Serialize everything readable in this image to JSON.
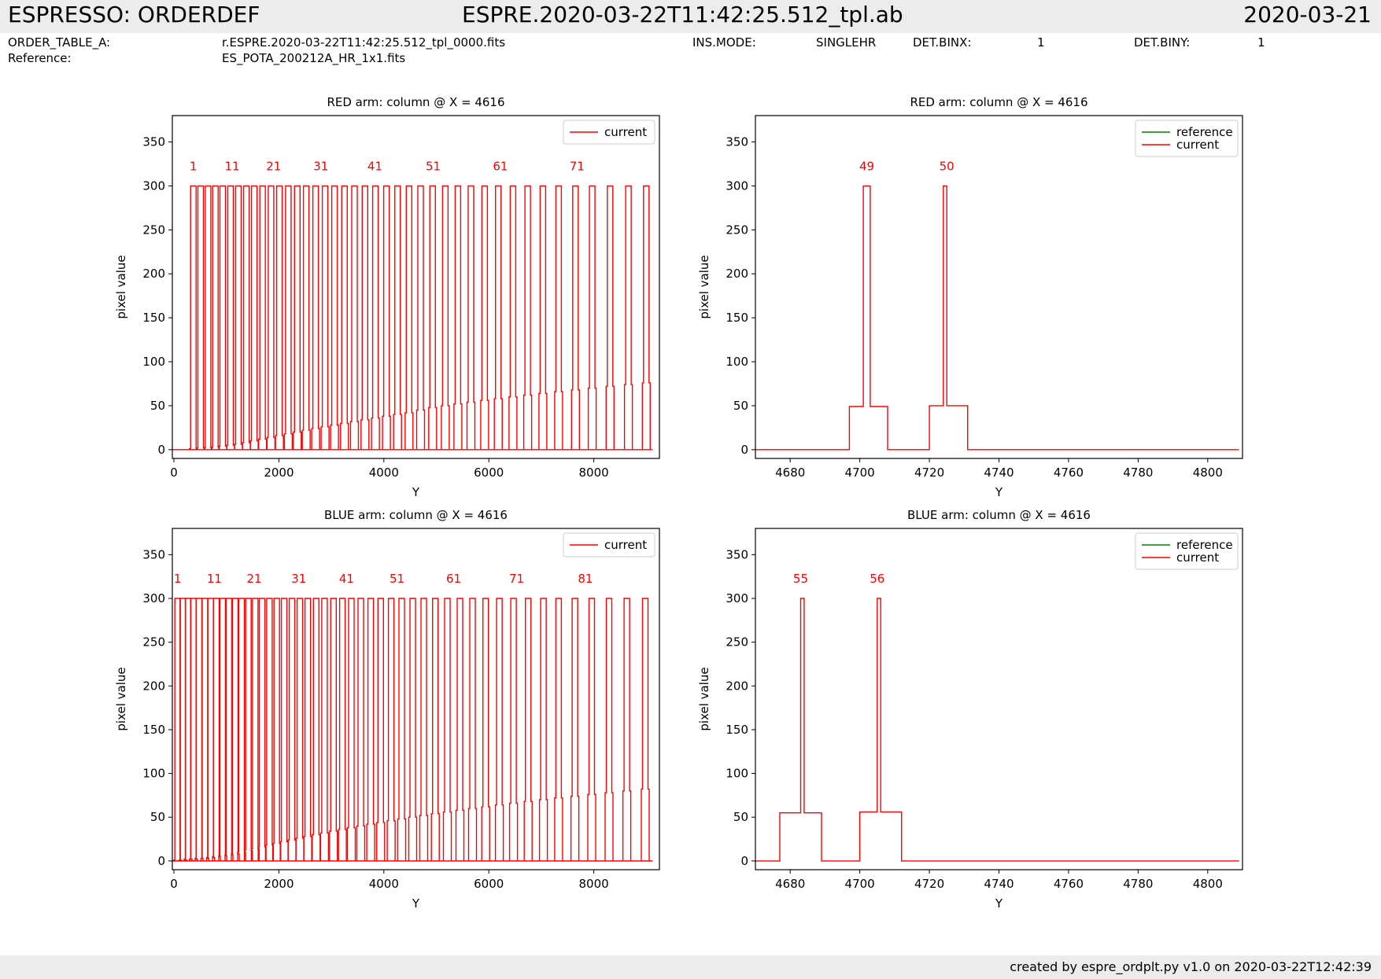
{
  "header": {
    "left": "ESPRESSO: ORDERDEF",
    "center": "ESPRE.2020-03-22T11:42:25.512_tpl.ab",
    "right": "2020-03-21"
  },
  "info": {
    "order_table_label": "ORDER_TABLE_A:",
    "order_table_value": "r.ESPRE.2020-03-22T11:42:25.512_tpl_0000.fits",
    "reference_label": "Reference:",
    "reference_value": "ES_POTA_200212A_HR_1x1.fits",
    "ins_mode_label": "INS.MODE:",
    "ins_mode_value": "SINGLEHR",
    "det_binx_label": "DET.BINX:",
    "det_binx_value": "1",
    "det_biny_label": "DET.BINY:",
    "det_biny_value": "1"
  },
  "footer": "created by espre_ordplt.py v1.0 on 2020-03-22T12:42:39",
  "colors": {
    "current": "#ff0000",
    "reference": "#008000",
    "axis": "#000000"
  },
  "chart_data": [
    {
      "type": "line",
      "title": "RED arm: column @ X = 4616",
      "xlabel": "Y",
      "ylabel": "pixel value",
      "xlim": [
        -30,
        9250
      ],
      "ylim": [
        -10,
        380
      ],
      "xticks": [
        0,
        2000,
        4000,
        6000,
        8000
      ],
      "yticks": [
        0,
        50,
        100,
        150,
        200,
        250,
        300,
        350
      ],
      "legend": {
        "position": "upper right",
        "entries": [
          "current"
        ]
      },
      "series": [
        {
          "name": "current",
          "kind": "spikes",
          "x": [
            370,
            510,
            650,
            790,
            930,
            1080,
            1230,
            1380,
            1530,
            1690,
            1850,
            2010,
            2180,
            2350,
            2520,
            2700,
            2880,
            3060,
            3250,
            3440,
            3640,
            3840,
            4050,
            4260,
            4480,
            4700,
            4930,
            5170,
            5410,
            5660,
            5920,
            6180,
            6460,
            6740,
            7030,
            7330,
            7650,
            7970,
            8310,
            8660,
            9000
          ],
          "peak": 300,
          "shoulder": [
            1,
            2,
            2,
            3,
            4,
            5,
            6,
            8,
            10,
            12,
            14,
            16,
            18,
            20,
            22,
            24,
            26,
            28,
            30,
            32,
            34,
            36,
            38,
            40,
            42,
            45,
            48,
            50,
            52,
            54,
            56,
            58,
            60,
            62,
            64,
            66,
            68,
            70,
            72,
            74,
            76
          ]
        }
      ],
      "annotations": [
        {
          "text": "1",
          "x": 370
        },
        {
          "text": "11",
          "x": 1110
        },
        {
          "text": "21",
          "x": 1900
        },
        {
          "text": "31",
          "x": 2800
        },
        {
          "text": "41",
          "x": 3830
        },
        {
          "text": "51",
          "x": 4940
        },
        {
          "text": "61",
          "x": 6220
        },
        {
          "text": "71",
          "x": 7680
        }
      ]
    },
    {
      "type": "line",
      "title": "RED arm: column @ X = 4616",
      "xlabel": "Y",
      "ylabel": "pixel value",
      "xlim": [
        4670,
        4810
      ],
      "ylim": [
        -10,
        380
      ],
      "xticks": [
        4680,
        4700,
        4720,
        4740,
        4760,
        4780,
        4800
      ],
      "yticks": [
        0,
        50,
        100,
        150,
        200,
        250,
        300,
        350
      ],
      "legend": {
        "position": "upper right",
        "entries": [
          "reference",
          "current"
        ]
      },
      "series": [
        {
          "name": "current",
          "kind": "steps",
          "points": [
            [
              4670,
              0
            ],
            [
              4697,
              0
            ],
            [
              4697,
              49
            ],
            [
              4701,
              49
            ],
            [
              4701,
              300
            ],
            [
              4703,
              300
            ],
            [
              4703,
              49
            ],
            [
              4708,
              49
            ],
            [
              4708,
              0
            ],
            [
              4720,
              0
            ],
            [
              4720,
              50
            ],
            [
              4724,
              50
            ],
            [
              4724,
              300
            ],
            [
              4725,
              300
            ],
            [
              4725,
              50
            ],
            [
              4731,
              50
            ],
            [
              4731,
              0
            ],
            [
              4809,
              0
            ]
          ]
        }
      ],
      "annotations": [
        {
          "text": "49",
          "x": 4702
        },
        {
          "text": "50",
          "x": 4725
        }
      ]
    },
    {
      "type": "line",
      "title": "BLUE arm: column @ X = 4616",
      "xlabel": "Y",
      "ylabel": "pixel value",
      "xlim": [
        -30,
        9250
      ],
      "ylim": [
        -10,
        380
      ],
      "xticks": [
        0,
        2000,
        4000,
        6000,
        8000
      ],
      "yticks": [
        0,
        50,
        100,
        150,
        200,
        250,
        300,
        350
      ],
      "legend": {
        "position": "upper right",
        "entries": [
          "current"
        ]
      },
      "series": [
        {
          "name": "current",
          "kind": "spikes",
          "x": [
            70,
            170,
            270,
            370,
            480,
            590,
            700,
            810,
            930,
            1050,
            1170,
            1290,
            1420,
            1550,
            1680,
            1820,
            1960,
            2100,
            2250,
            2400,
            2550,
            2710,
            2870,
            3040,
            3210,
            3380,
            3560,
            3750,
            3940,
            4140,
            4340,
            4550,
            4760,
            4980,
            5210,
            5450,
            5690,
            5940,
            6200,
            6470,
            6750,
            7040,
            7330,
            7640,
            7960,
            8290,
            8630,
            8980
          ],
          "peak": 300,
          "shoulder": [
            1,
            1,
            2,
            2,
            3,
            3,
            4,
            5,
            6,
            7,
            8,
            10,
            12,
            14,
            16,
            18,
            20,
            22,
            24,
            26,
            28,
            30,
            32,
            34,
            36,
            38,
            40,
            42,
            44,
            46,
            48,
            50,
            52,
            54,
            56,
            58,
            60,
            62,
            64,
            66,
            68,
            70,
            72,
            74,
            76,
            78,
            80,
            82
          ]
        }
      ],
      "annotations": [
        {
          "text": "1",
          "x": 70
        },
        {
          "text": "11",
          "x": 770
        },
        {
          "text": "21",
          "x": 1530
        },
        {
          "text": "31",
          "x": 2380
        },
        {
          "text": "41",
          "x": 3290
        },
        {
          "text": "51",
          "x": 4250
        },
        {
          "text": "61",
          "x": 5330
        },
        {
          "text": "71",
          "x": 6530
        },
        {
          "text": "81",
          "x": 7840
        }
      ]
    },
    {
      "type": "line",
      "title": "BLUE arm: column @ X = 4616",
      "xlabel": "Y",
      "ylabel": "pixel value",
      "xlim": [
        4670,
        4810
      ],
      "ylim": [
        -10,
        380
      ],
      "xticks": [
        4680,
        4700,
        4720,
        4740,
        4760,
        4780,
        4800
      ],
      "yticks": [
        0,
        50,
        100,
        150,
        200,
        250,
        300,
        350
      ],
      "legend": {
        "position": "upper right",
        "entries": [
          "reference",
          "current"
        ]
      },
      "series": [
        {
          "name": "current",
          "kind": "steps",
          "points": [
            [
              4670,
              0
            ],
            [
              4677,
              0
            ],
            [
              4677,
              55
            ],
            [
              4683,
              55
            ],
            [
              4683,
              300
            ],
            [
              4684,
              300
            ],
            [
              4684,
              55
            ],
            [
              4689,
              55
            ],
            [
              4689,
              0
            ],
            [
              4700,
              0
            ],
            [
              4700,
              56
            ],
            [
              4705,
              56
            ],
            [
              4705,
              300
            ],
            [
              4706,
              300
            ],
            [
              4706,
              56
            ],
            [
              4712,
              56
            ],
            [
              4712,
              0
            ],
            [
              4809,
              0
            ]
          ]
        }
      ],
      "annotations": [
        {
          "text": "55",
          "x": 4683
        },
        {
          "text": "56",
          "x": 4705
        }
      ]
    }
  ]
}
